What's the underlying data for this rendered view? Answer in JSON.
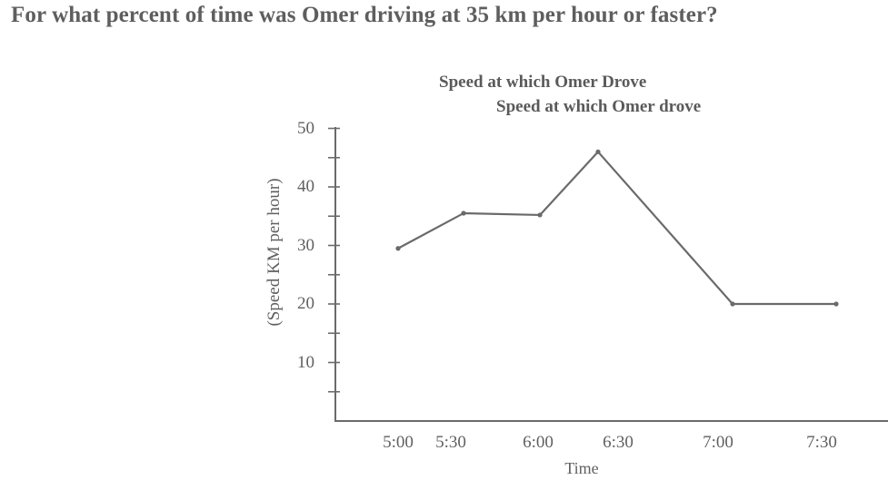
{
  "question": "For what percent of time was Omer driving at 35 km per hour or faster?",
  "chart_data": {
    "type": "line",
    "title": "Speed at which Omer Drove",
    "subtitle": "Speed at which Omer drove",
    "xlabel": "Time",
    "ylabel": "(Speed KM per hour)",
    "categories": [
      "5:00",
      "5:30",
      "6:00",
      "6:30",
      "7:00",
      "7:30"
    ],
    "series": [
      {
        "name": "Speed",
        "values": [
          29.5,
          35.5,
          35.2,
          46,
          20,
          20
        ]
      }
    ],
    "ylim": [
      0,
      50
    ],
    "yticks": [
      10,
      20,
      30,
      40,
      50
    ],
    "minor_yticks": [
      5,
      15,
      25,
      35,
      45
    ],
    "grid": false,
    "legend": "none",
    "line_color": "#6a6a6a"
  },
  "axis": {
    "ytick_labels": [
      "50",
      "40",
      "30",
      "20",
      "10"
    ],
    "xtick_labels": [
      "5:00",
      "5:30",
      "6:00",
      "6:30",
      "7:00",
      "7:30"
    ]
  }
}
